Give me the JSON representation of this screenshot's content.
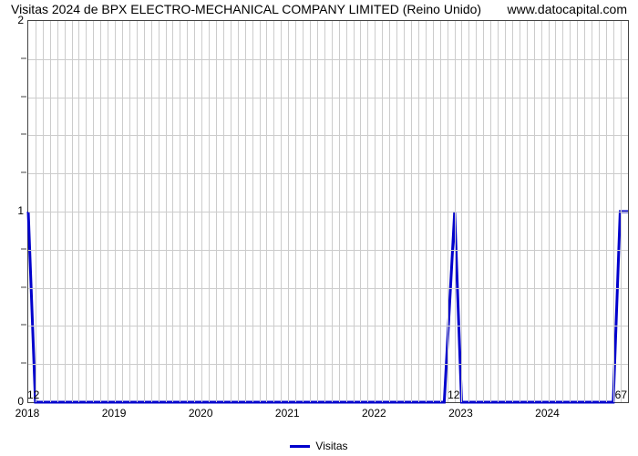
{
  "title_left": "Visitas 2024 de BPX ELECTRO-MECHANICAL COMPANY LIMITED (Reino Unido)",
  "title_right": "www.datocapital.com",
  "chart": {
    "type": "line",
    "line_color": "#0000cc",
    "line_width": 3,
    "background_color": "#ffffff",
    "grid_color": "#cccccc",
    "axis_color": "#444444",
    "x": {
      "min": 2018.0,
      "max": 2024.92,
      "tick_step": 1,
      "ticks": [
        2018,
        2019,
        2020,
        2021,
        2022,
        2023,
        2024
      ],
      "minor_per_major": 12
    },
    "y": {
      "min": 0,
      "max": 2,
      "ticks": [
        0,
        1,
        2
      ],
      "minor_per_major": 5
    },
    "points": [
      [
        2018.0,
        1.0
      ],
      [
        2018.083,
        0.0
      ],
      [
        2022.8,
        0.0
      ],
      [
        2022.92,
        1.0
      ],
      [
        2023.0,
        0.0
      ],
      [
        2024.75,
        0.0
      ],
      [
        2024.83,
        1.0
      ],
      [
        2024.92,
        1.0
      ]
    ],
    "value_labels": [
      {
        "x": 2018.0,
        "text": "12"
      },
      {
        "x": 2022.92,
        "text": "12"
      },
      {
        "x": 2024.92,
        "text": "67"
      }
    ],
    "legend_label": "Visitas",
    "title_fontsize": 14,
    "tick_fontsize": 12
  }
}
